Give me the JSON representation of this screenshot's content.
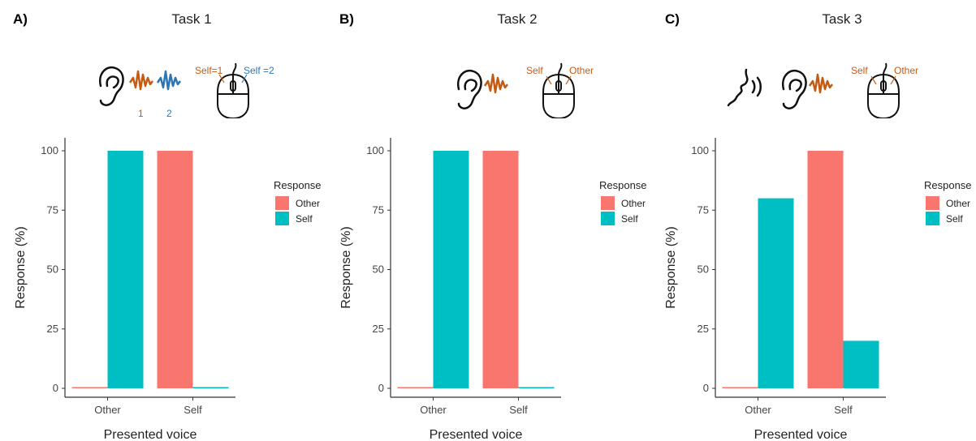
{
  "colors": {
    "other": "#F8766D",
    "self": "#00BFC4",
    "icon_orange": "#C55A11",
    "icon_blue": "#2E75B6"
  },
  "panels": [
    {
      "letter": "A)",
      "title": "Task 1",
      "icons": [
        "ear-icon",
        "orange-soundwave-icon",
        "blue-soundwave-icon",
        "computer-mouse-icon"
      ],
      "icon_labels": {
        "wave1": "1",
        "wave2": "2",
        "left_button": "Self=1",
        "right_button": "Self =2"
      }
    },
    {
      "letter": "B)",
      "title": "Task 2",
      "icons": [
        "ear-icon",
        "orange-soundwave-icon",
        "computer-mouse-icon"
      ],
      "icon_labels": {
        "left_button": "Self",
        "right_button": "Other"
      }
    },
    {
      "letter": "C)",
      "title": "Task 3",
      "icons": [
        "speaking-face-icon",
        "ear-icon",
        "orange-soundwave-icon",
        "computer-mouse-icon"
      ],
      "icon_labels": {
        "left_button": "Self",
        "right_button": "Other"
      }
    }
  ],
  "chart_data": [
    {
      "type": "bar",
      "categories": [
        "Other",
        "Self"
      ],
      "series": [
        {
          "name": "Other",
          "values": [
            0,
            100
          ]
        },
        {
          "name": "Self",
          "values": [
            100,
            0
          ]
        }
      ],
      "xlabel": "Presented voice",
      "ylabel": "Response (%)",
      "ylim": [
        0,
        100
      ],
      "yticks": [
        0,
        25,
        50,
        75,
        100
      ],
      "legend_title": "Response",
      "legend_position": "right",
      "grid": false
    },
    {
      "type": "bar",
      "categories": [
        "Other",
        "Self"
      ],
      "series": [
        {
          "name": "Other",
          "values": [
            0,
            100
          ]
        },
        {
          "name": "Self",
          "values": [
            100,
            0
          ]
        }
      ],
      "xlabel": "Presented voice",
      "ylabel": "Response (%)",
      "ylim": [
        0,
        100
      ],
      "yticks": [
        0,
        25,
        50,
        75,
        100
      ],
      "legend_title": "Response",
      "legend_position": "right",
      "grid": false
    },
    {
      "type": "bar",
      "categories": [
        "Other",
        "Self"
      ],
      "series": [
        {
          "name": "Other",
          "values": [
            0,
            100
          ]
        },
        {
          "name": "Self",
          "values": [
            80,
            20
          ]
        }
      ],
      "xlabel": "Presented voice",
      "ylabel": "Response (%)",
      "ylim": [
        0,
        100
      ],
      "yticks": [
        0,
        25,
        50,
        75,
        100
      ],
      "legend_title": "Response",
      "legend_position": "right",
      "grid": false
    }
  ]
}
